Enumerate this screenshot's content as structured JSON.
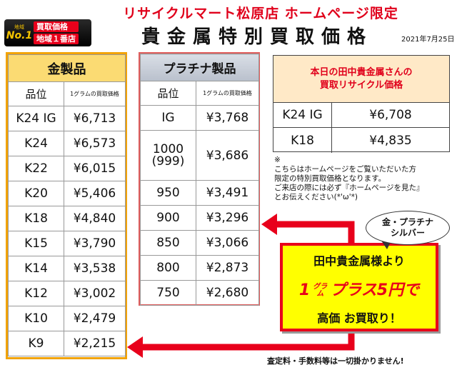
{
  "header": {
    "top_title": "リサイクルマート松原店 ホームページ限定",
    "badge": {
      "region_small": "地域",
      "no1": "No.1",
      "line1": "買取価格",
      "line2": "地域１番店"
    },
    "main_title": "貴金属特別買取価格",
    "date": "2021年7月25日"
  },
  "gold": {
    "heading": "金製品",
    "col_grade": "品位",
    "col_price": "1グラムの買取価格",
    "rows": [
      {
        "grade": "K24 IG",
        "price": "¥6,713"
      },
      {
        "grade": "K24",
        "price": "¥6,573"
      },
      {
        "grade": "K22",
        "price": "¥6,015"
      },
      {
        "grade": "K20",
        "price": "¥5,406"
      },
      {
        "grade": "K18",
        "price": "¥4,840"
      },
      {
        "grade": "K15",
        "price": "¥3,790"
      },
      {
        "grade": "K14",
        "price": "¥3,538"
      },
      {
        "grade": "K12",
        "price": "¥3,002"
      },
      {
        "grade": "K10",
        "price": "¥2,479"
      },
      {
        "grade": "K9",
        "price": "¥2,215"
      }
    ]
  },
  "platinum": {
    "heading": "プラチナ製品",
    "col_grade": "品位",
    "col_price": "1グラムの買取価格",
    "rows": [
      {
        "grade": "IG",
        "price": "¥3,768"
      },
      {
        "grade": "1000\n(999)",
        "price": "¥3,686"
      },
      {
        "grade": "950",
        "price": "¥3,491"
      },
      {
        "grade": "900",
        "price": "¥3,296"
      },
      {
        "grade": "850",
        "price": "¥3,066"
      },
      {
        "grade": "800",
        "price": "¥2,873"
      },
      {
        "grade": "750",
        "price": "¥2,680"
      }
    ]
  },
  "tanaka": {
    "heading_line1": "本日の田中貴金属さんの",
    "heading_line2": "買取リサイクル価格",
    "rows": [
      {
        "grade": "K24 IG",
        "price": "¥6,708"
      },
      {
        "grade": "K18",
        "price": "¥4,835"
      }
    ]
  },
  "note": {
    "mark": "※",
    "lines": [
      "こちらはホームページをご覧いただいた方",
      "限定の特別買取価格となります。",
      "ご来店の際には必ず『ホームページを見た』",
      "とお伝えください(*'ω'*)"
    ]
  },
  "bubble": {
    "line1": "金・プラチナ",
    "line2": "シルバー"
  },
  "promo": {
    "line1": "田中貴金属様より",
    "line2_num": "1",
    "line2_unit_top": "グラ",
    "line2_unit_bottom": "ム",
    "line2_rest": "プラス5円で",
    "line3": "高価 お買取り！"
  },
  "footer": "査定料・手数料等は一切掛かりません!",
  "colors": {
    "red": "#e8001b",
    "gold_border": "#f2a300",
    "gold_header": "#fbdb73",
    "promo_bg": "#ffff00"
  }
}
